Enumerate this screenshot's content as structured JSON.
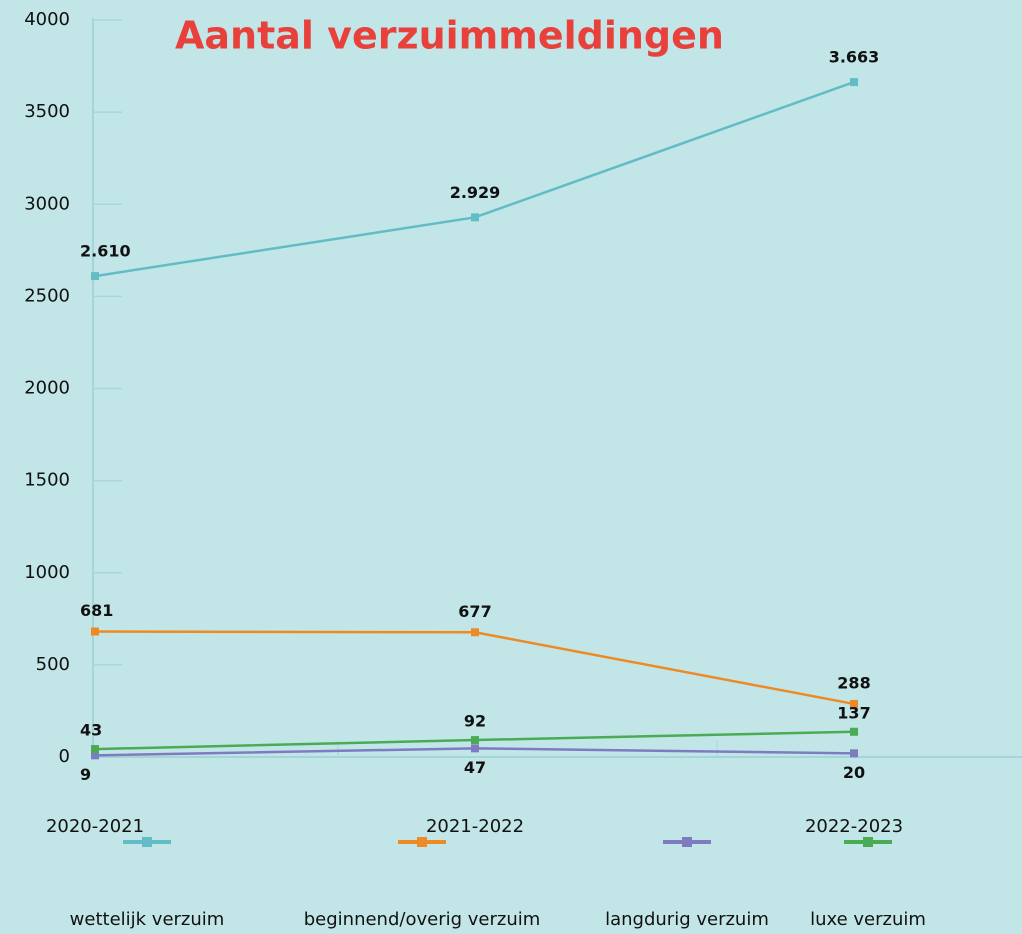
{
  "chart_data": {
    "type": "line",
    "title": "Aantal verzuimmeldingen",
    "categories": [
      "2020-2021",
      "2021-2022",
      "2022-2023"
    ],
    "series": [
      {
        "name": "wettelijk verzuim",
        "color": "#62bcc6",
        "values": [
          2610,
          2929,
          3663
        ],
        "value_labels": [
          "2.610",
          "2.929",
          "3.663"
        ]
      },
      {
        "name": "beginnend/overig verzuim",
        "color": "#ee8a24",
        "values": [
          681,
          677,
          288
        ],
        "value_labels": [
          "681",
          "677",
          "288"
        ]
      },
      {
        "name": "langdurig verzuim",
        "color": "#7d7cc0",
        "values": [
          9,
          47,
          20
        ],
        "value_labels": [
          "9",
          "47",
          "20"
        ]
      },
      {
        "name": "luxe verzuim",
        "color": "#4aab55",
        "values": [
          43,
          92,
          137
        ],
        "value_labels": [
          "43",
          "92",
          "137"
        ]
      }
    ],
    "ylim": [
      0,
      4000
    ],
    "yticks": [
      0,
      500,
      1000,
      1500,
      2000,
      2500,
      3000,
      3500,
      4000
    ],
    "grid": true,
    "legend": "bottom"
  }
}
